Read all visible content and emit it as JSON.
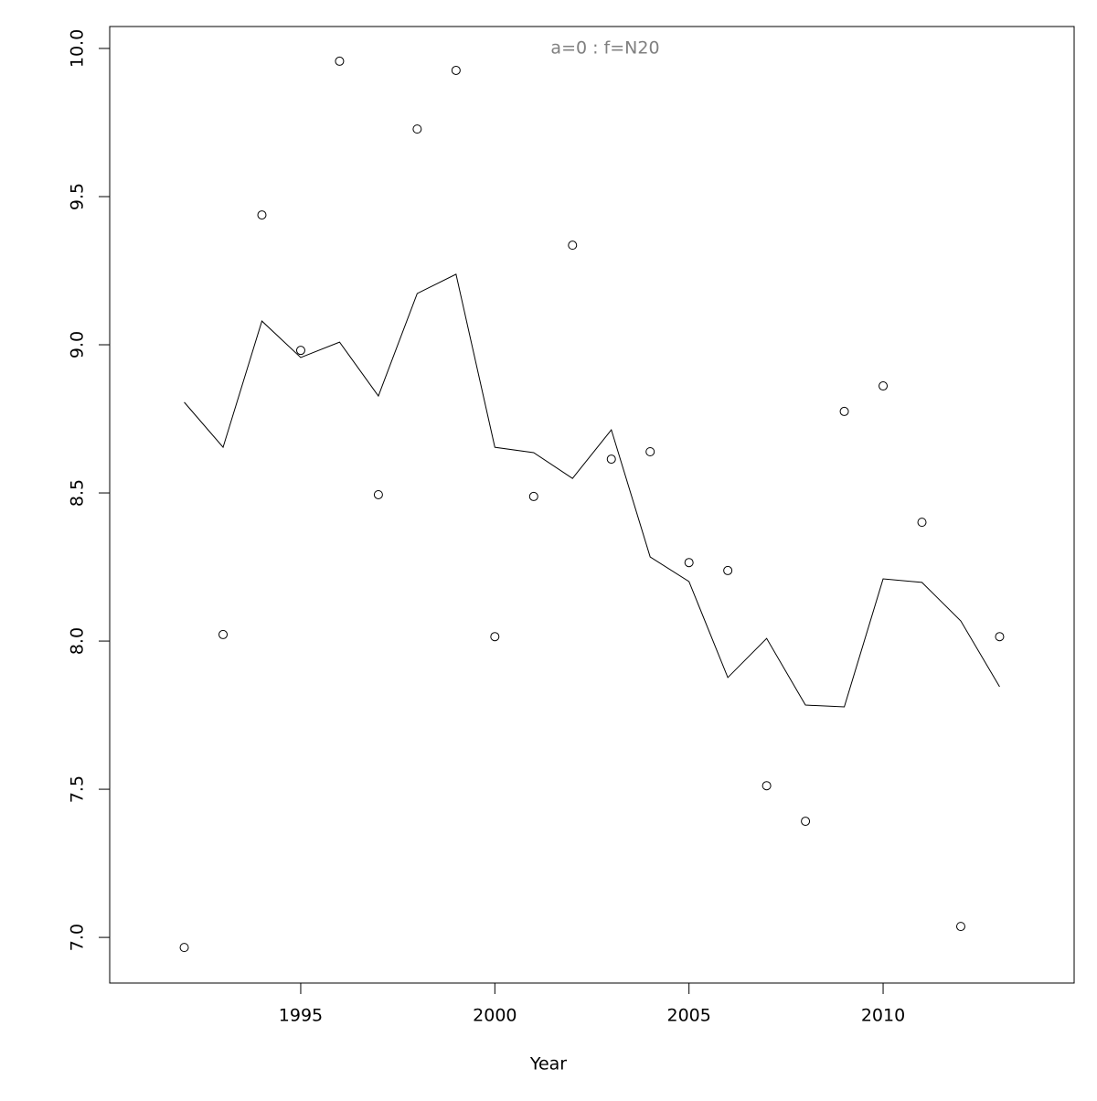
{
  "chart_data": {
    "type": "line",
    "title": "a=0  :  f=N20",
    "x_label": "Year",
    "x": [
      1992,
      1993,
      1994,
      1995,
      1996,
      1997,
      1998,
      1999,
      2000,
      2001,
      2002,
      2003,
      2004,
      2005,
      2006,
      2007,
      2008,
      2009,
      2010,
      2011,
      2012,
      2013
    ],
    "series": [
      {
        "style": "points",
        "color": "#000000",
        "values": [
          6.966,
          8.022,
          9.438,
          8.981,
          9.957,
          8.494,
          9.728,
          9.926,
          8.015,
          8.488,
          9.336,
          8.614,
          8.639,
          8.265,
          8.238,
          7.512,
          7.392,
          8.775,
          8.861,
          8.401,
          7.037,
          8.015
        ]
      },
      {
        "style": "line",
        "color": "#000000",
        "values": [
          8.806,
          8.654,
          9.08,
          8.957,
          9.009,
          8.827,
          9.173,
          9.238,
          8.654,
          8.636,
          8.549,
          8.713,
          8.284,
          8.201,
          7.877,
          8.009,
          7.784,
          7.778,
          8.21,
          8.198,
          8.068,
          7.846
        ]
      }
    ],
    "xlim": [
      1990.08,
      2014.92
    ],
    "ylim": [
      6.846,
      10.074
    ],
    "xticks": [
      1995,
      2000,
      2005,
      2010
    ],
    "yticks": [
      {
        "value": 7,
        "label": "7.0"
      },
      7.5,
      {
        "value": 8,
        "label": "8.0"
      },
      8.5,
      {
        "value": 9,
        "label": "9.0"
      },
      9.5,
      {
        "value": 10,
        "label": "10.0"
      }
    ],
    "title_color": "#808080"
  }
}
